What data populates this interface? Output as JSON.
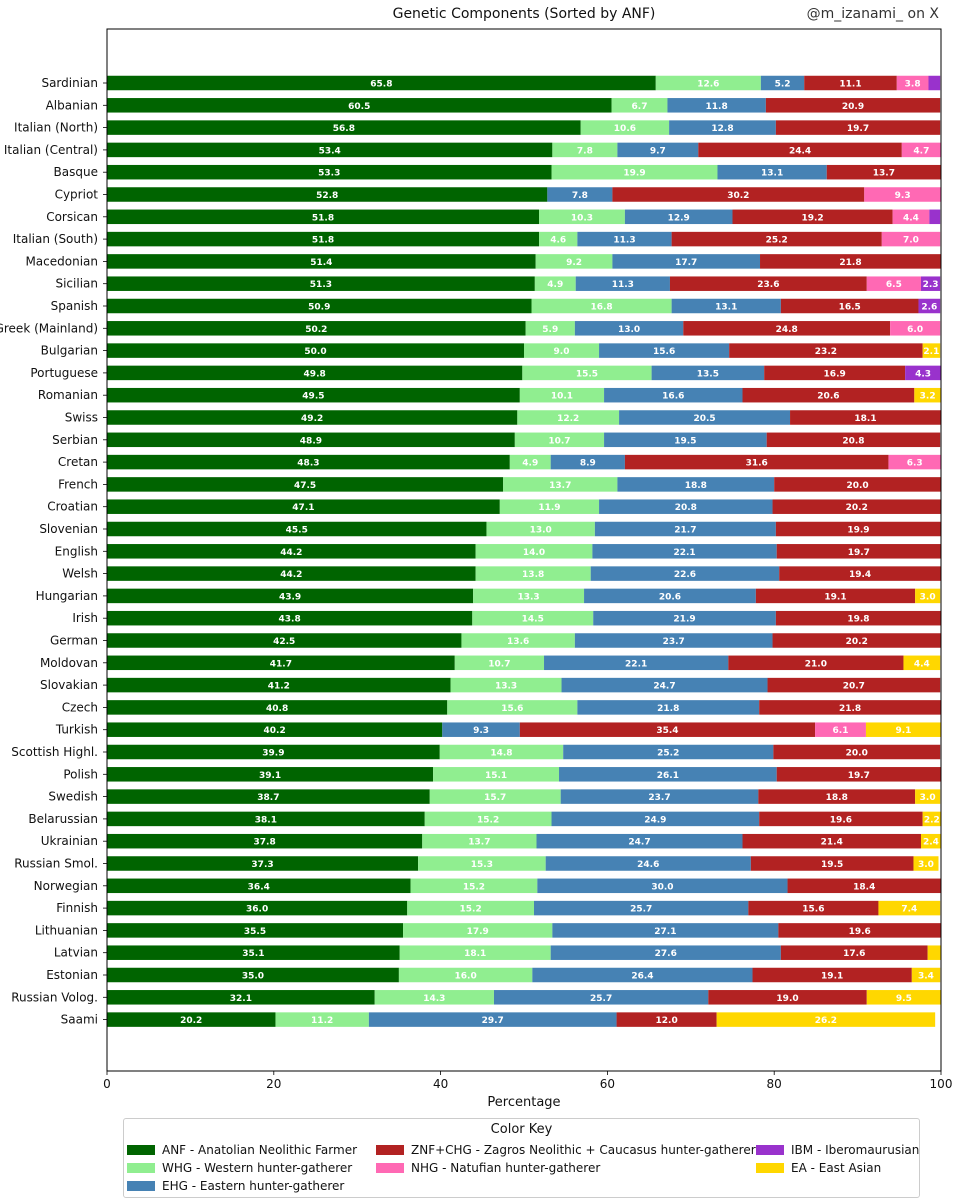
{
  "title": "Genetic Components (Sorted by ANF)",
  "watermark": "@m_izanami_ on X",
  "legend_title": "Color Key",
  "chart_data": {
    "type": "bar",
    "orientation": "horizontal",
    "stacked": true,
    "title": "Genetic Components (Sorted by ANF)",
    "xlabel": "Percentage",
    "ylabel": "",
    "xlim": [
      0,
      100
    ],
    "xticks": [
      0,
      20,
      40,
      60,
      80,
      100
    ],
    "grid": false,
    "legend_position": "bottom",
    "categories": [
      "Sardinian",
      "Albanian",
      "Italian (North)",
      "Italian (Central)",
      "Basque",
      "Cypriot",
      "Corsican",
      "Italian (South)",
      "Macedonian",
      "Sicilian",
      "Spanish",
      "Greek (Mainland)",
      "Bulgarian",
      "Portuguese",
      "Romanian",
      "Swiss",
      "Serbian",
      "Cretan",
      "French",
      "Croatian",
      "Slovenian",
      "English",
      "Welsh",
      "Hungarian",
      "Irish",
      "German",
      "Moldovan",
      "Slovakian",
      "Czech",
      "Turkish",
      "Scottish Highl.",
      "Polish",
      "Swedish",
      "Belarussian",
      "Ukrainian",
      "Russian Smol.",
      "Norwegian",
      "Finnish",
      "Lithuanian",
      "Latvian",
      "Estonian",
      "Russian Volog.",
      "Saami"
    ],
    "series": [
      {
        "name": "ANF - Anatolian Neolithic Farmer",
        "color": "#006400",
        "values": [
          65.8,
          60.5,
          56.8,
          53.4,
          53.3,
          52.8,
          51.8,
          51.8,
          51.4,
          51.3,
          50.9,
          50.2,
          50.0,
          49.8,
          49.5,
          49.2,
          48.9,
          48.3,
          47.5,
          47.1,
          45.5,
          44.2,
          44.2,
          43.9,
          43.8,
          42.5,
          41.7,
          41.2,
          40.8,
          40.2,
          39.9,
          39.1,
          38.7,
          38.1,
          37.8,
          37.3,
          36.4,
          36.0,
          35.5,
          35.1,
          35.0,
          32.1,
          20.2
        ]
      },
      {
        "name": "WHG - Western hunter-gatherer",
        "color": "#90ee90",
        "values": [
          12.6,
          6.7,
          10.6,
          7.8,
          19.9,
          0,
          10.3,
          4.6,
          9.2,
          4.9,
          16.8,
          5.9,
          9.0,
          15.5,
          10.1,
          12.2,
          10.7,
          4.9,
          13.7,
          11.9,
          13.0,
          14.0,
          13.8,
          13.3,
          14.5,
          13.6,
          10.7,
          13.3,
          15.6,
          0,
          14.8,
          15.1,
          15.7,
          15.2,
          13.7,
          15.3,
          15.2,
          15.2,
          17.9,
          18.1,
          16.0,
          14.3,
          11.2
        ]
      },
      {
        "name": "EHG - Eastern hunter-gatherer",
        "color": "#4682b4",
        "values": [
          5.2,
          11.8,
          12.8,
          9.7,
          13.1,
          7.8,
          12.9,
          11.3,
          17.7,
          11.3,
          13.1,
          13.0,
          15.6,
          13.5,
          16.6,
          20.5,
          19.5,
          8.9,
          18.8,
          20.8,
          21.7,
          22.1,
          22.6,
          20.6,
          21.9,
          23.7,
          22.1,
          24.7,
          21.8,
          9.3,
          25.2,
          26.1,
          23.7,
          24.9,
          24.7,
          24.6,
          30.0,
          25.7,
          27.1,
          27.6,
          26.4,
          25.7,
          29.7
        ]
      },
      {
        "name": "ZNF+CHG - Zagros Neolithic + Caucasus hunter-gatherer",
        "color": "#b22222",
        "values": [
          11.1,
          20.9,
          19.7,
          24.4,
          13.7,
          30.2,
          19.2,
          25.2,
          21.8,
          23.6,
          16.5,
          24.8,
          23.2,
          16.9,
          20.6,
          18.1,
          20.8,
          31.6,
          20.0,
          20.2,
          19.9,
          19.7,
          19.4,
          19.1,
          19.8,
          20.2,
          21.0,
          20.7,
          21.8,
          35.4,
          20.0,
          19.7,
          18.8,
          19.6,
          21.4,
          19.5,
          18.4,
          15.6,
          19.6,
          17.6,
          19.1,
          19.0,
          12.0
        ]
      },
      {
        "name": "NHG - Natufian hunter-gatherer",
        "color": "#ff69b4",
        "values": [
          3.8,
          0,
          0,
          4.7,
          0,
          9.3,
          4.4,
          7.0,
          0,
          6.5,
          0,
          6.0,
          0,
          0,
          0,
          0,
          0,
          6.3,
          0,
          0,
          0,
          0,
          0,
          0,
          0,
          0,
          0,
          0,
          0,
          6.1,
          0,
          0,
          0,
          0,
          0,
          0,
          0,
          0,
          0,
          0,
          0,
          0,
          0
        ]
      },
      {
        "name": "IBM - Iberomaurusian",
        "color": "#9932cc",
        "values": [
          1.4,
          0,
          0,
          0,
          0,
          0,
          1.3,
          0,
          0,
          2.3,
          2.6,
          0,
          0,
          4.3,
          0,
          0,
          0,
          0,
          0,
          0,
          0,
          0,
          0,
          0,
          0,
          0,
          0,
          0,
          0,
          0,
          0,
          0,
          0,
          0,
          0,
          0,
          0,
          0,
          0,
          0,
          0,
          0,
          0
        ]
      },
      {
        "name": "EA - East Asian",
        "color": "#ffd700",
        "values": [
          0,
          0,
          0,
          0,
          0,
          0,
          0,
          0,
          0,
          0,
          0,
          0,
          2.1,
          0,
          3.2,
          0,
          0,
          0,
          0,
          0,
          0,
          0,
          0,
          3.0,
          0,
          0,
          4.4,
          0,
          0,
          9.1,
          0,
          0,
          3.0,
          2.2,
          2.4,
          3.0,
          0,
          7.4,
          0,
          1.6,
          3.4,
          9.5,
          26.2
        ]
      }
    ]
  }
}
